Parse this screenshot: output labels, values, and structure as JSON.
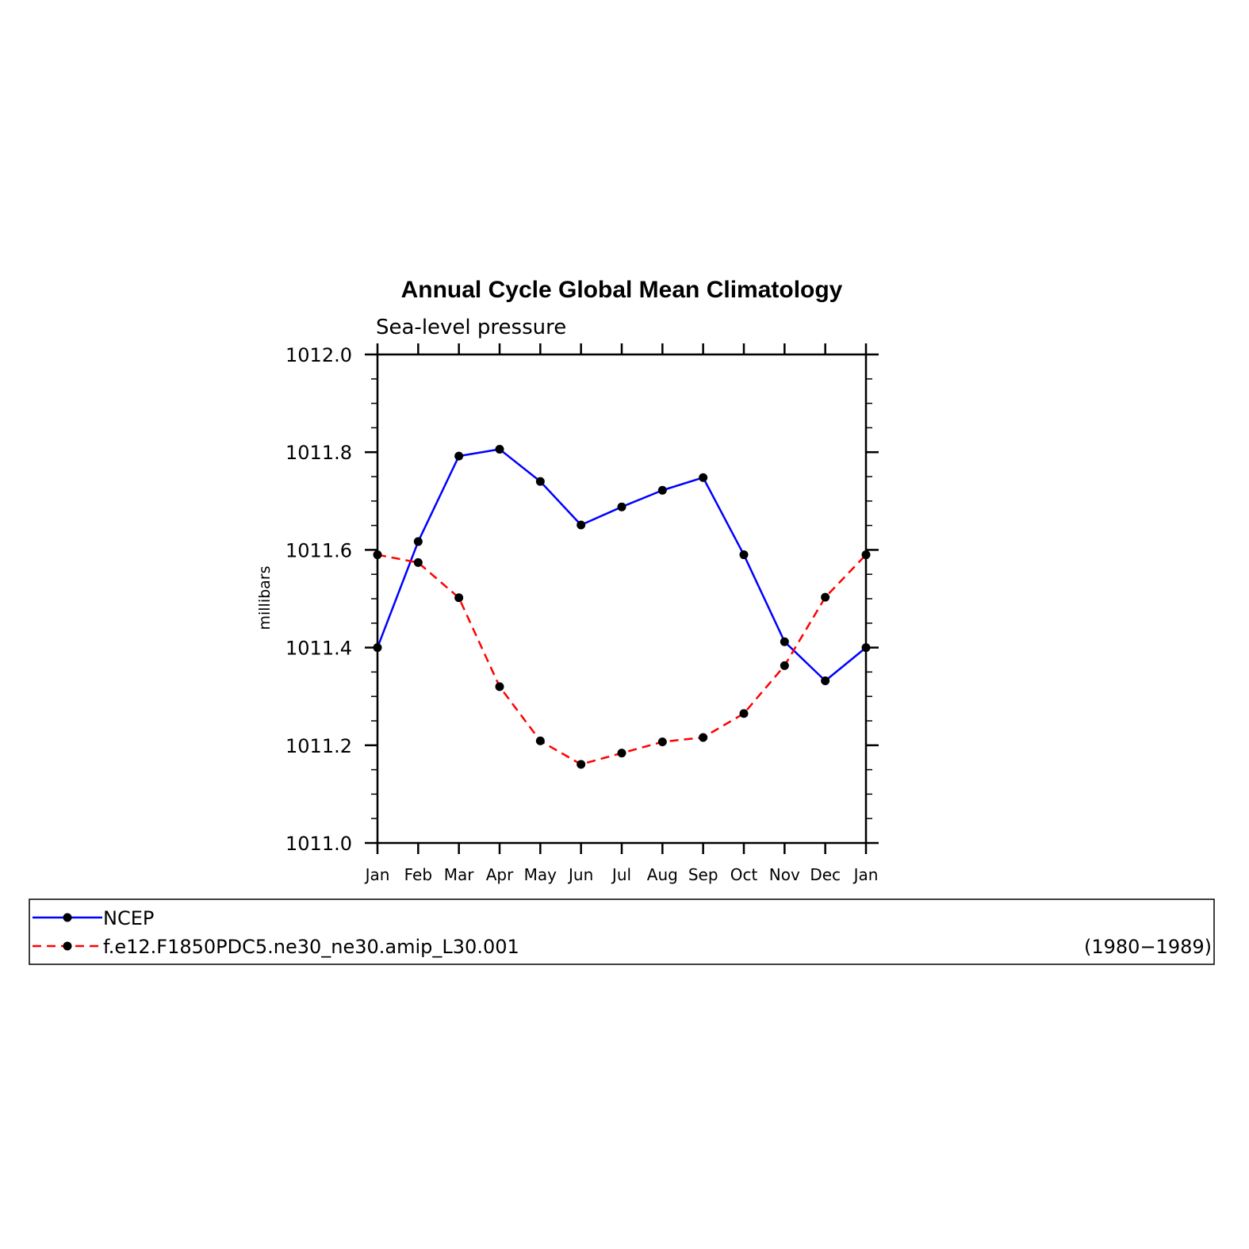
{
  "chart_data": {
    "type": "line",
    "title": "Annual Cycle Global Mean Climatology",
    "subtitle": "Sea-level pressure",
    "xlabel": "",
    "ylabel": "millibars",
    "categories": [
      "Jan",
      "Feb",
      "Mar",
      "Apr",
      "May",
      "Jun",
      "Jul",
      "Aug",
      "Sep",
      "Oct",
      "Nov",
      "Dec",
      "Jan"
    ],
    "ylim": [
      1011.0,
      1012.0
    ],
    "yticks": [
      "1011.0",
      "1011.2",
      "1011.4",
      "1011.6",
      "1011.8",
      "1012.0"
    ],
    "grid": false,
    "legend_position": "bottom",
    "series": [
      {
        "name": "NCEP",
        "color": "#0000ff",
        "style": "solid",
        "values": [
          1011.4,
          1011.617,
          1011.792,
          1011.806,
          1011.74,
          1011.651,
          1011.688,
          1011.722,
          1011.748,
          1011.59,
          1011.412,
          1011.332,
          1011.4
        ]
      },
      {
        "name": "f.e12.F1850PDC5.ne30_ne30.amip_L30.001",
        "color": "#ff0000",
        "style": "dashed",
        "values": [
          1011.59,
          1011.574,
          1011.502,
          1011.32,
          1011.209,
          1011.161,
          1011.184,
          1011.207,
          1011.216,
          1011.265,
          1011.363,
          1011.503,
          1011.59
        ]
      }
    ],
    "legend_note": "(1980−1989)"
  }
}
